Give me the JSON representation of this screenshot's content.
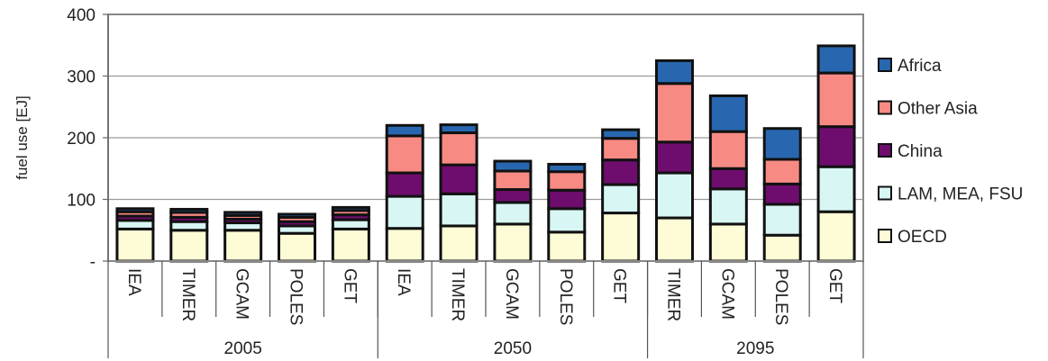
{
  "chart_data": {
    "type": "bar",
    "stacked": true,
    "ylabel": "fuel use [EJ]",
    "ylim": [
      0,
      400
    ],
    "yticks": [
      {
        "value": 0,
        "label": "-"
      },
      {
        "value": 100,
        "label": "100"
      },
      {
        "value": 200,
        "label": "200"
      },
      {
        "value": 300,
        "label": "300"
      },
      {
        "value": 400,
        "label": "400"
      }
    ],
    "grid": true,
    "legend_position": "right",
    "categories": [
      "IEA",
      "TIMER",
      "GCAM",
      "POLES",
      "GET",
      "IEA",
      "TIMER",
      "GCAM",
      "POLES",
      "GET",
      "TIMER",
      "GCAM",
      "POLES",
      "GET"
    ],
    "groups": [
      {
        "label": "2005",
        "count": 5
      },
      {
        "label": "2050",
        "count": 5
      },
      {
        "label": "2095",
        "count": 4
      }
    ],
    "series": [
      {
        "name": "OECD",
        "color": "#fdfcd7",
        "values": [
          52,
          50,
          50,
          45,
          52,
          53,
          57,
          60,
          47,
          78,
          70,
          60,
          42,
          80
        ]
      },
      {
        "name": "LAM, MEA, FSU",
        "color": "#d8f6f4",
        "values": [
          14,
          14,
          12,
          12,
          15,
          52,
          52,
          35,
          38,
          46,
          73,
          57,
          50,
          73
        ]
      },
      {
        "name": "China",
        "color": "#6e0d6e",
        "values": [
          7,
          7,
          6,
          7,
          8,
          38,
          47,
          21,
          30,
          40,
          50,
          33,
          33,
          65
        ]
      },
      {
        "name": "Other Asia",
        "color": "#f88a84",
        "values": [
          7,
          8,
          6,
          7,
          7,
          60,
          52,
          30,
          30,
          35,
          95,
          60,
          40,
          87
        ]
      },
      {
        "name": "Africa",
        "color": "#2867b0",
        "values": [
          5,
          5,
          5,
          5,
          5,
          17,
          13,
          16,
          12,
          14,
          37,
          58,
          50,
          44
        ]
      }
    ],
    "legend_order": [
      "Africa",
      "Other Asia",
      "China",
      "LAM, MEA, FSU",
      "OECD"
    ]
  }
}
